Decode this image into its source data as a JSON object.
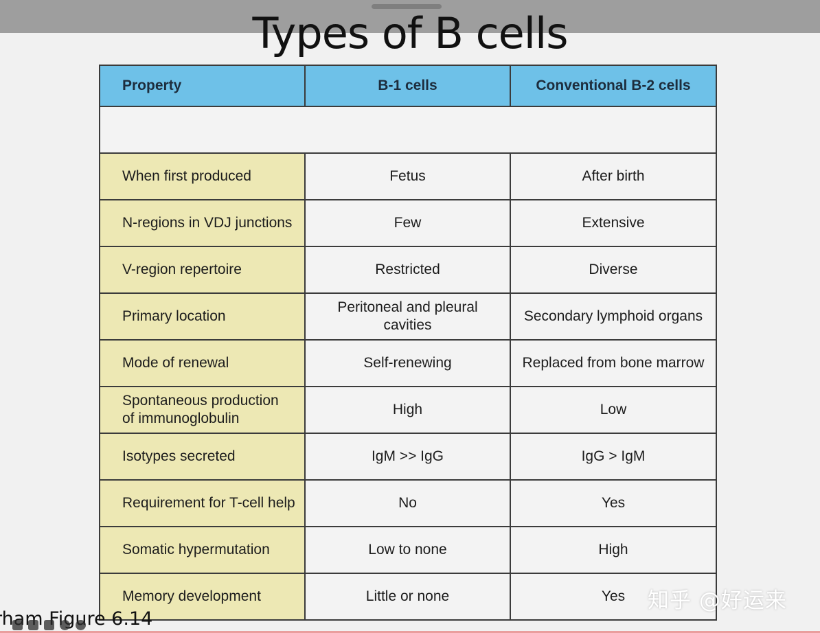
{
  "title": "Types of B cells",
  "table": {
    "headers": [
      "Property",
      "B-1 cells",
      "Conventional B-2 cells"
    ],
    "rows": [
      [
        "When first produced",
        "Fetus",
        "After birth"
      ],
      [
        "N-regions in VDJ junctions",
        "Few",
        "Extensive"
      ],
      [
        "V-region repertoire",
        "Restricted",
        "Diverse"
      ],
      [
        "Primary location",
        "Peritoneal and pleural cavities",
        "Secondary lymphoid organs"
      ],
      [
        "Mode of renewal",
        "Self-renewing",
        "Replaced from bone marrow"
      ],
      [
        "Spontaneous production\nof immunoglobulin",
        "High",
        "Low"
      ],
      [
        "Isotypes secreted",
        "IgM  >>  IgG",
        "IgG  >  IgM"
      ],
      [
        "Requirement for T-cell help",
        "No",
        "Yes"
      ],
      [
        "Somatic hypermutation",
        "Low to none",
        "High"
      ],
      [
        "Memory development",
        "Little or none",
        "Yes"
      ]
    ]
  },
  "caption": "rham Figure 6.14",
  "watermark": "知乎 @好运来",
  "colors": {
    "header_bg": "#6ec1e8",
    "property_bg": "#ede8b4",
    "top_bar": "#9e9e9e"
  },
  "icons": [
    "back-icon",
    "captions-icon",
    "skip-icon",
    "settings-icon",
    "play-icon"
  ]
}
